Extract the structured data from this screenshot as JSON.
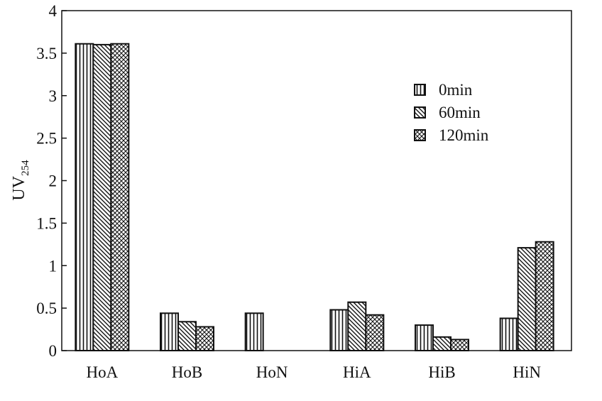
{
  "chart_data": {
    "type": "bar",
    "title": "",
    "xlabel": "",
    "ylabel": "UV",
    "ylabel_subscript": "254",
    "categories": [
      "HoA",
      "HoB",
      "HoN",
      "HiA",
      "HiB",
      "HiN"
    ],
    "series": [
      {
        "name": "0min",
        "pattern": "vertical-lines",
        "values": [
          3.61,
          0.44,
          0.44,
          0.48,
          0.3,
          0.38
        ]
      },
      {
        "name": "60min",
        "pattern": "diagonal-lines",
        "values": [
          3.6,
          0.34,
          0.0,
          0.57,
          0.16,
          1.21
        ]
      },
      {
        "name": "120min",
        "pattern": "crosshatch",
        "values": [
          3.61,
          0.28,
          0.0,
          0.42,
          0.13,
          1.28
        ]
      }
    ],
    "ylim": [
      0,
      4
    ],
    "yticks": [
      "0",
      "0.5",
      "1",
      "1.5",
      "2",
      "2.5",
      "3",
      "3.5",
      "4"
    ],
    "grid": false,
    "legend_position": "top-right",
    "colors": {
      "stroke": "#111111",
      "background": "#ffffff"
    }
  }
}
